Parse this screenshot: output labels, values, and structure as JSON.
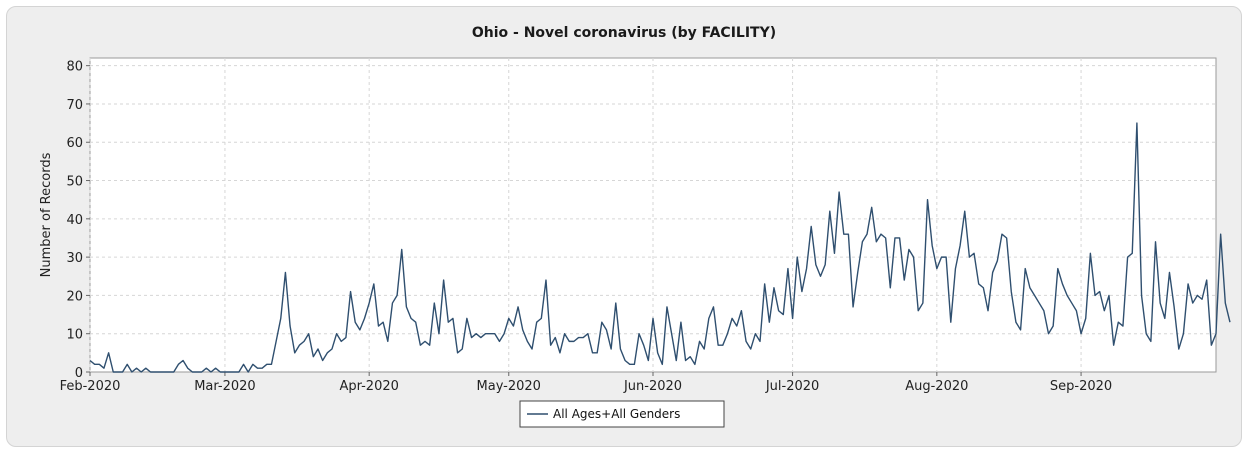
{
  "chart_data": {
    "type": "line",
    "title": "Ohio - Novel coronavirus (by FACILITY)",
    "xlabel": "",
    "ylabel": "Number of Records",
    "ylim": [
      0,
      82
    ],
    "yticks": [
      0,
      10,
      20,
      30,
      40,
      50,
      60,
      70,
      80
    ],
    "x_start": "2020-02-01",
    "x_end": "2020-09-30",
    "x_ticks": [
      {
        "label": "Feb-2020",
        "date": "2020-02-01"
      },
      {
        "label": "Mar-2020",
        "date": "2020-03-01"
      },
      {
        "label": "Apr-2020",
        "date": "2020-04-01"
      },
      {
        "label": "May-2020",
        "date": "2020-05-01"
      },
      {
        "label": "Jun-2020",
        "date": "2020-06-01"
      },
      {
        "label": "Jul-2020",
        "date": "2020-07-01"
      },
      {
        "label": "Aug-2020",
        "date": "2020-08-01"
      },
      {
        "label": "Sep-2020",
        "date": "2020-09-01"
      }
    ],
    "grid": true,
    "legend_position": "bottom-center",
    "series": [
      {
        "name": "All Ages+All Genders",
        "color": "#2f4f6f",
        "values": [
          3,
          2,
          2,
          1,
          5,
          0,
          0,
          0,
          2,
          0,
          1,
          0,
          1,
          0,
          0,
          0,
          0,
          0,
          0,
          2,
          3,
          1,
          0,
          0,
          0,
          1,
          0,
          1,
          0,
          0,
          0,
          0,
          0,
          2,
          0,
          2,
          1,
          1,
          2,
          2,
          8,
          14,
          26,
          12,
          5,
          7,
          8,
          10,
          4,
          6,
          3,
          5,
          6,
          10,
          8,
          9,
          21,
          13,
          11,
          14,
          18,
          23,
          12,
          13,
          8,
          18,
          20,
          32,
          17,
          14,
          13,
          7,
          8,
          7,
          18,
          10,
          24,
          13,
          14,
          5,
          6,
          14,
          9,
          10,
          9,
          10,
          10,
          10,
          8,
          10,
          14,
          12,
          17,
          11,
          8,
          6,
          13,
          14,
          24,
          7,
          9,
          5,
          10,
          8,
          8,
          9,
          9,
          10,
          5,
          5,
          13,
          11,
          6,
          18,
          6,
          3,
          2,
          2,
          10,
          7,
          3,
          14,
          5,
          2,
          17,
          10,
          3,
          13,
          3,
          4,
          2,
          8,
          6,
          14,
          17,
          7,
          7,
          10,
          14,
          12,
          16,
          8,
          6,
          10,
          8,
          23,
          13,
          22,
          16,
          15,
          27,
          14,
          30,
          21,
          27,
          38,
          28,
          25,
          28,
          42,
          31,
          47,
          36,
          36,
          17,
          26,
          34,
          36,
          43,
          34,
          36,
          35,
          22,
          35,
          35,
          24,
          32,
          30,
          16,
          18,
          45,
          33,
          27,
          30,
          30,
          13,
          27,
          33,
          42,
          30,
          31,
          23,
          22,
          16,
          26,
          29,
          36,
          35,
          21,
          13,
          11,
          27,
          22,
          20,
          18,
          16,
          10,
          12,
          27,
          23,
          20,
          18,
          16,
          10,
          14,
          31,
          20,
          21,
          16,
          20,
          7,
          13,
          12,
          30,
          31,
          65,
          20,
          10,
          8,
          34,
          18,
          14,
          26,
          17,
          6,
          10,
          23,
          18,
          20,
          19,
          24,
          7,
          10,
          36,
          18,
          13
        ]
      }
    ]
  }
}
